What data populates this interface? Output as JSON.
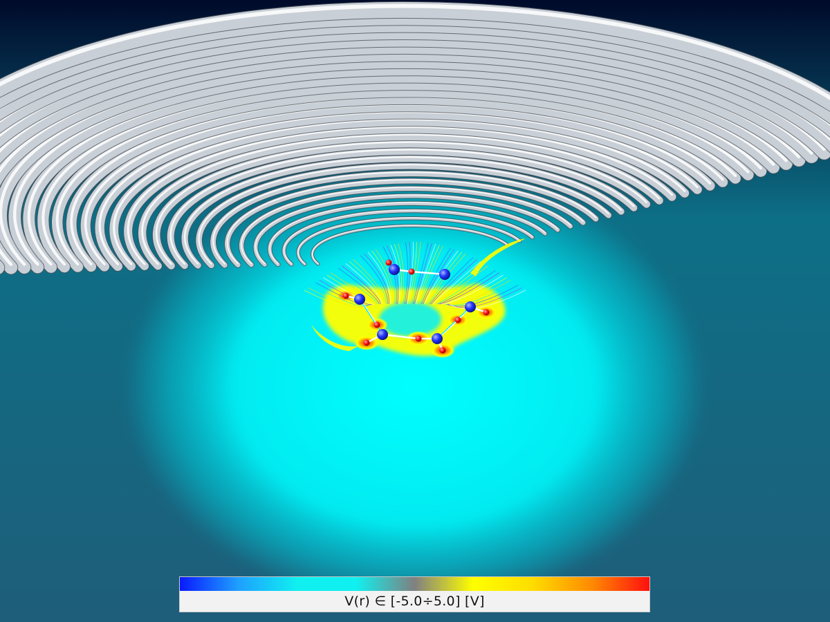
{
  "colorbar": {
    "label": "V(r) ∈ [-5.0÷5.0]  [V]",
    "range": [
      -5.0,
      5.0
    ],
    "stops": [
      "#0a1aff",
      "#1ea0ff",
      "#10f0f0",
      "#10f0f0",
      "#808080",
      "#ffff00",
      "#ffdd00",
      "#ff8c00",
      "#ff1010"
    ]
  },
  "colors": {
    "background_top": "#000a2a",
    "background_mid": "#0d6f86",
    "background_bottom": "#1e5e7a",
    "glow": "#00ffff",
    "tube": "#c9cfd6",
    "atom_n": "#2233ff",
    "atom_o": "#ff1111",
    "bond": "#ffffff"
  }
}
